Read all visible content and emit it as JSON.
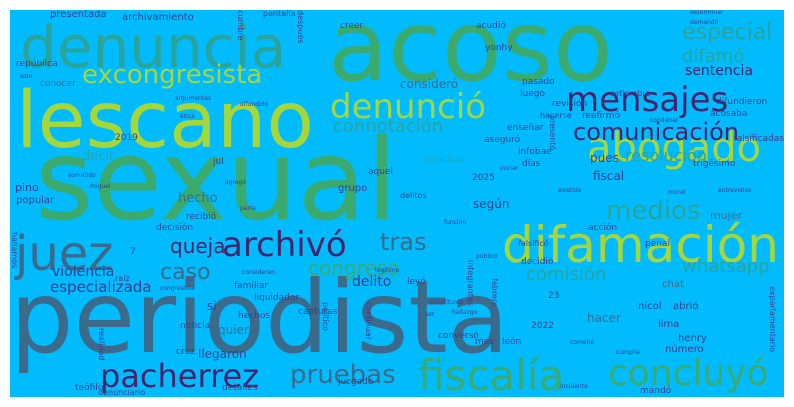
{
  "colors": {
    "background": "#00bcff",
    "green": "#3aaa6e",
    "lime": "#a5d63a",
    "navy": "#3b3f8c",
    "slate": "#3c6a8a",
    "teal": "#2aa39a",
    "purple": "#45246e",
    "mid": "#2f8f8f"
  },
  "words": [
    {
      "text": "sexual",
      "size": 112,
      "color": "green"
    },
    {
      "text": "periodista",
      "size": 100,
      "color": "slate"
    },
    {
      "text": "acoso",
      "size": 98,
      "color": "green"
    },
    {
      "text": "lescano",
      "size": 78,
      "color": "lime"
    },
    {
      "text": "denuncia",
      "size": 58,
      "color": "teal"
    },
    {
      "text": "difamación",
      "size": 50,
      "color": "lime"
    },
    {
      "text": "abogado",
      "size": 40,
      "color": "lime"
    },
    {
      "text": "juez",
      "size": 48,
      "color": "slate"
    },
    {
      "text": "archivó",
      "size": 34,
      "color": "purple"
    },
    {
      "text": "denunció",
      "size": 34,
      "color": "lime"
    },
    {
      "text": "mensajes",
      "size": 34,
      "color": "purple"
    },
    {
      "text": "fiscalía",
      "size": 42,
      "color": "green"
    },
    {
      "text": "concluyó",
      "size": 36,
      "color": "green"
    },
    {
      "text": "pacherrez",
      "size": 32,
      "color": "purple"
    },
    {
      "text": "excongresista",
      "size": 26,
      "color": "lime"
    },
    {
      "text": "comunicación",
      "size": 24,
      "color": "purple"
    },
    {
      "text": "medios",
      "size": 26,
      "color": "teal"
    },
    {
      "text": "pruebas",
      "size": 26,
      "color": "slate"
    },
    {
      "text": "especial",
      "size": 22,
      "color": "teal"
    },
    {
      "text": "tras",
      "size": 24,
      "color": "slate"
    },
    {
      "text": "congreso",
      "size": 20,
      "color": "green"
    },
    {
      "text": "caso",
      "size": 22,
      "color": "slate"
    },
    {
      "text": "queja",
      "size": 20,
      "color": "purple"
    },
    {
      "text": "difamó",
      "size": 18,
      "color": "teal"
    },
    {
      "text": "connotación",
      "size": 18,
      "color": "teal"
    },
    {
      "text": "comisión",
      "size": 18,
      "color": "teal"
    },
    {
      "text": "whatsapp",
      "size": 18,
      "color": "teal"
    },
    {
      "text": "sentencia",
      "size": 14,
      "color": "purple"
    },
    {
      "text": "resolución",
      "size": 16,
      "color": "teal"
    },
    {
      "text": "especializada",
      "size": 15,
      "color": "navy"
    },
    {
      "text": "violencia",
      "size": 14,
      "color": "navy"
    },
    {
      "text": "delito",
      "size": 14,
      "color": "navy"
    },
    {
      "text": "hecho",
      "size": 13,
      "color": "slate"
    },
    {
      "text": "quiere",
      "size": 12,
      "color": "slate"
    },
    {
      "text": "llegaron",
      "size": 12,
      "color": "navy"
    },
    {
      "text": "según",
      "size": 12,
      "color": "navy"
    },
    {
      "text": "pues",
      "size": 12,
      "color": "navy"
    },
    {
      "text": "fiscal",
      "size": 12,
      "color": "navy"
    },
    {
      "text": "decir",
      "size": 13,
      "color": "teal"
    },
    {
      "text": "consideró",
      "size": 12,
      "color": "slate"
    },
    {
      "text": "mujer",
      "size": 11,
      "color": "slate"
    },
    {
      "text": "pino",
      "size": 11,
      "color": "navy"
    },
    {
      "text": "popular",
      "size": 10,
      "color": "navy"
    },
    {
      "text": "grupo",
      "size": 10,
      "color": "navy"
    },
    {
      "text": "hacer",
      "size": 12,
      "color": "slate"
    },
    {
      "text": "chat",
      "size": 10,
      "color": "slate"
    },
    {
      "text": "lima",
      "size": 10,
      "color": "navy"
    },
    {
      "text": "henry",
      "size": 10,
      "color": "navy"
    },
    {
      "text": "nicol",
      "size": 10,
      "color": "navy"
    },
    {
      "text": "abrió",
      "size": 10,
      "color": "navy"
    },
    {
      "text": "número",
      "size": 10,
      "color": "navy"
    },
    {
      "text": "presentada",
      "size": 10,
      "color": "navy"
    },
    {
      "text": "archivamiento",
      "size": 10,
      "color": "navy"
    },
    {
      "text": "república",
      "size": 9,
      "color": "navy"
    },
    {
      "text": "conocer",
      "size": 9,
      "color": "slate"
    },
    {
      "text": "2019",
      "size": 9,
      "color": "navy"
    },
    {
      "text": "jul",
      "size": 9,
      "color": "navy"
    },
    {
      "text": "jonathan",
      "size": 9,
      "color": "teal"
    },
    {
      "text": "aquel",
      "size": 9,
      "color": "navy"
    },
    {
      "text": "2025",
      "size": 9,
      "color": "navy"
    },
    {
      "text": "yonhy",
      "size": 9,
      "color": "navy"
    },
    {
      "text": "creer",
      "size": 9,
      "color": "navy"
    },
    {
      "text": "acudió",
      "size": 9,
      "color": "navy"
    },
    {
      "text": "pasado",
      "size": 9,
      "color": "navy"
    },
    {
      "text": "luego",
      "size": 9,
      "color": "navy"
    },
    {
      "text": "revisión",
      "size": 9,
      "color": "navy"
    },
    {
      "text": "reafirmó",
      "size": 9,
      "color": "navy"
    },
    {
      "text": "aseguró",
      "size": 9,
      "color": "navy"
    },
    {
      "text": "enseñar",
      "size": 9,
      "color": "navy"
    },
    {
      "text": "infobae",
      "size": 9,
      "color": "navy"
    },
    {
      "text": "días",
      "size": 9,
      "color": "navy"
    },
    {
      "text": "acosaba",
      "size": 9,
      "color": "navy"
    },
    {
      "text": "trigésimo",
      "size": 9,
      "color": "navy"
    },
    {
      "text": "falsificadas",
      "size": 9,
      "color": "navy"
    },
    {
      "text": "difundieron",
      "size": 9,
      "color": "navy"
    },
    {
      "text": "recibió",
      "size": 9,
      "color": "navy"
    },
    {
      "text": "decisión",
      "size": 9,
      "color": "navy"
    },
    {
      "text": "familiar",
      "size": 9,
      "color": "navy"
    },
    {
      "text": "liquidador",
      "size": 9,
      "color": "navy"
    },
    {
      "text": "hechos",
      "size": 9,
      "color": "navy"
    },
    {
      "text": "capturas",
      "size": 9,
      "color": "navy"
    },
    {
      "text": "noticia",
      "size": 9,
      "color": "navy"
    },
    {
      "text": "cruz",
      "size": 9,
      "color": "navy"
    },
    {
      "text": "teófilo",
      "size": 9,
      "color": "navy"
    },
    {
      "text": "detalles",
      "size": 9,
      "color": "navy"
    },
    {
      "text": "mandó",
      "size": 9,
      "color": "navy"
    },
    {
      "text": "juzgado",
      "size": 9,
      "color": "navy"
    },
    {
      "text": "conversó",
      "size": 9,
      "color": "navy"
    },
    {
      "text": "mes",
      "size": 9,
      "color": "navy"
    },
    {
      "text": "león",
      "size": 9,
      "color": "navy"
    },
    {
      "text": "2022",
      "size": 9,
      "color": "navy"
    },
    {
      "text": "23",
      "size": 9,
      "color": "navy"
    },
    {
      "text": "acción",
      "size": 9,
      "color": "navy"
    },
    {
      "text": "decidió",
      "size": 9,
      "color": "navy"
    },
    {
      "text": "leyó",
      "size": 9,
      "color": "navy"
    },
    {
      "text": "penal",
      "size": 9,
      "color": "navy"
    },
    {
      "text": "si",
      "size": 12,
      "color": "navy"
    },
    {
      "text": "7",
      "size": 9,
      "color": "navy"
    },
    {
      "text": "raíz",
      "size": 8,
      "color": "navy"
    },
    {
      "text": "falsificó",
      "size": 8,
      "color": "navy"
    },
    {
      "text": "delitos",
      "size": 8,
      "color": "navy"
    },
    {
      "text": "presentó",
      "size": 8,
      "color": "navy"
    },
    {
      "text": "pantalla",
      "size": 8,
      "color": "navy"
    },
    {
      "text": "después",
      "size": 8,
      "color": "navy"
    },
    {
      "text": "hallamos",
      "size": 8,
      "color": "navy"
    },
    {
      "text": "integrantes",
      "size": 8,
      "color": "navy"
    },
    {
      "text": "febrero",
      "size": 8,
      "color": "navy"
    },
    {
      "text": "cumbre",
      "size": 8,
      "color": "navy"
    },
    {
      "text": "realidad",
      "size": 8,
      "color": "navy"
    },
    {
      "text": "político",
      "size": 8,
      "color": "navy"
    },
    {
      "text": "continuar",
      "size": 8,
      "color": "navy"
    },
    {
      "text": "exparlamentario",
      "size": 8,
      "color": "navy"
    },
    {
      "text": "denunciario",
      "size": 8,
      "color": "navy"
    },
    {
      "text": "setiembre",
      "size": 8,
      "color": "navy"
    },
    {
      "text": "hacerse",
      "size": 8,
      "color": "navy"
    },
    {
      "text": "determinar",
      "size": 6,
      "color": "navy"
    },
    {
      "text": "demandó",
      "size": 6,
      "color": "navy"
    },
    {
      "text": "difundido",
      "size": 6,
      "color": "navy"
    },
    {
      "text": "argumentes",
      "size": 6,
      "color": "navy"
    },
    {
      "text": "condenar",
      "size": 6,
      "color": "navy"
    },
    {
      "text": "moral",
      "size": 6,
      "color": "navy"
    },
    {
      "text": "entrevistas",
      "size": 6,
      "color": "navy"
    },
    {
      "text": "existido",
      "size": 6,
      "color": "navy"
    },
    {
      "text": "cometió",
      "size": 6,
      "color": "navy"
    },
    {
      "text": "legítimo",
      "size": 6,
      "color": "navy"
    },
    {
      "text": "hallazgo",
      "size": 6,
      "color": "navy"
    },
    {
      "text": "consideran",
      "size": 6,
      "color": "navy"
    },
    {
      "text": "cumplía",
      "size": 6,
      "color": "navy"
    },
    {
      "text": "ser",
      "size": 6,
      "color": "navy"
    },
    {
      "text": "público",
      "size": 6,
      "color": "navy"
    },
    {
      "text": "parte",
      "size": 6,
      "color": "navy"
    },
    {
      "text": "agregó",
      "size": 6,
      "color": "navy"
    },
    {
      "text": "miguel",
      "size": 6,
      "color": "navy"
    },
    {
      "text": "sometido",
      "size": 6,
      "color": "navy"
    },
    {
      "text": "solo",
      "size": 6,
      "color": "navy"
    },
    {
      "text": "ética",
      "size": 6,
      "color": "navy"
    },
    {
      "text": "función",
      "size": 6,
      "color": "navy"
    },
    {
      "text": "constituido",
      "size": 6,
      "color": "navy"
    },
    {
      "text": "congresista",
      "size": 6,
      "color": "navy"
    },
    {
      "text": "iniciar",
      "size": 6,
      "color": "navy"
    },
    {
      "text": "incidente",
      "size": 6,
      "color": "navy"
    }
  ]
}
